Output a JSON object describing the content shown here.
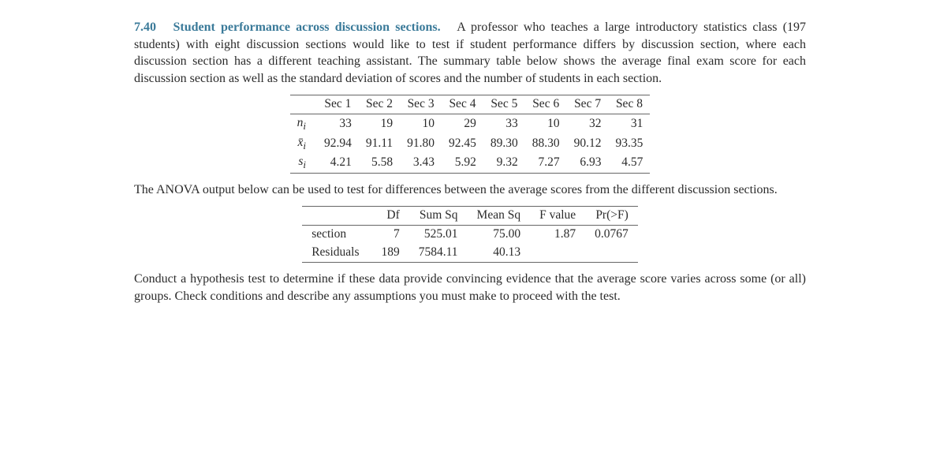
{
  "problem": {
    "number": "7.40",
    "title": "Student performance across discussion sections.",
    "intro": "A professor who teaches a large introductory statistics class (197 students) with eight discussion sections would like to test if student performance differs by discussion section, where each discussion section has a different teaching assistant. The summary table below shows the average final exam score for each discussion section as well as the standard deviation of scores and the number of of students in each section.",
    "intro_fixed": "A professor who teaches a large introductory statistics class (197 students) with eight discussion sections would like to test if student performance differs by discussion section, where each discussion section has a different teaching assistant. The summary table below shows the average final exam score for each discussion section as well as the standard deviation of scores and the number of students in each section."
  },
  "summary_table": {
    "columns": [
      "Sec 1",
      "Sec 2",
      "Sec 3",
      "Sec 4",
      "Sec 5",
      "Sec 6",
      "Sec 7",
      "Sec 8"
    ],
    "row_labels_html": [
      "n<sub>i</sub>",
      "x̄<sub>i</sub>",
      "s<sub>i</sub>"
    ],
    "rows": [
      [
        "33",
        "19",
        "10",
        "29",
        "33",
        "10",
        "32",
        "31"
      ],
      [
        "92.94",
        "91.11",
        "91.80",
        "92.45",
        "89.30",
        "88.30",
        "90.12",
        "93.35"
      ],
      [
        "4.21",
        "5.58",
        "3.43",
        "5.92",
        "9.32",
        "7.27",
        "6.93",
        "4.57"
      ]
    ]
  },
  "mid_text": "The ANOVA output below can be used to test for differences between the average scores from the different discussion sections.",
  "anova_table": {
    "columns": [
      "Df",
      "Sum Sq",
      "Mean Sq",
      "F value",
      "Pr(>F)"
    ],
    "row_labels": [
      "section",
      "Residuals"
    ],
    "rows": [
      [
        "7",
        "525.01",
        "75.00",
        "1.87",
        "0.0767"
      ],
      [
        "189",
        "7584.11",
        "40.13",
        "",
        ""
      ]
    ]
  },
  "closing": "Conduct a hypothesis test to determine if these data provide convincing evidence that the average score varies across some (or all) groups. Check conditions and describe any assumptions you must make to proceed with the test.",
  "style": {
    "accent_color": "#3a7a99",
    "text_color": "#2b2b2b",
    "background_color": "#ffffff",
    "font_family": "Times New Roman",
    "body_fontsize_pt": 12,
    "rule_color": "#666666"
  }
}
